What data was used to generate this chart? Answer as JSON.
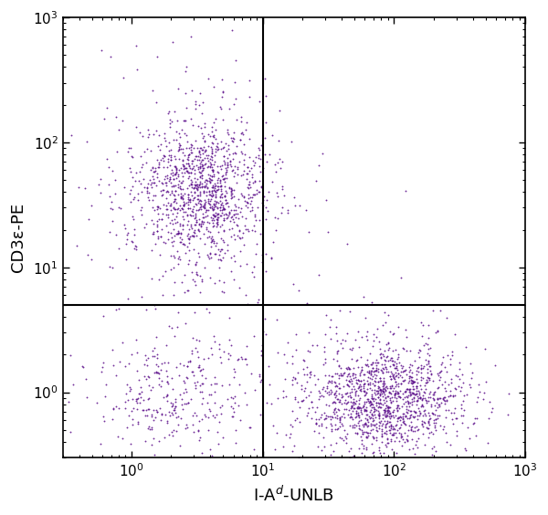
{
  "dot_color": "#5B0E8B",
  "dot_alpha": 0.85,
  "dot_size": 1.8,
  "xlim": [
    0.3,
    1000
  ],
  "ylim": [
    0.3,
    1000
  ],
  "xlabel": "I-A$^d$-UNLB",
  "ylabel": "CD3ε-PE",
  "quadrant_x": 10.0,
  "quadrant_y": 5.0,
  "quadrant_color": "black",
  "quadrant_linewidth": 1.5,
  "background_color": "#ffffff",
  "figsize": [
    6.0,
    5.64
  ],
  "dpi": 100,
  "clusters": [
    {
      "name": "top_left_core",
      "center_x_log": 0.55,
      "center_y_log": 1.6,
      "std_x_log": 0.22,
      "std_y_log": 0.28,
      "n": 900
    },
    {
      "name": "top_left_spread",
      "center_x_log": 0.45,
      "center_y_log": 1.55,
      "std_x_log": 0.42,
      "std_y_log": 0.45,
      "n": 400
    },
    {
      "name": "bottom_left",
      "center_x_log": 0.35,
      "center_y_log": -0.02,
      "std_x_log": 0.3,
      "std_y_log": 0.25,
      "n": 350
    },
    {
      "name": "bottom_right_core",
      "center_x_log": 1.95,
      "center_y_log": -0.05,
      "std_x_log": 0.28,
      "std_y_log": 0.2,
      "n": 1000
    },
    {
      "name": "bottom_right_spread",
      "center_x_log": 1.85,
      "center_y_log": 0.0,
      "std_x_log": 0.4,
      "std_y_log": 0.28,
      "n": 400
    },
    {
      "name": "scattered_top",
      "center_x_log": 0.5,
      "center_y_log": 2.6,
      "std_x_log": 0.3,
      "std_y_log": 0.5,
      "n": 15
    }
  ],
  "seed": 77
}
